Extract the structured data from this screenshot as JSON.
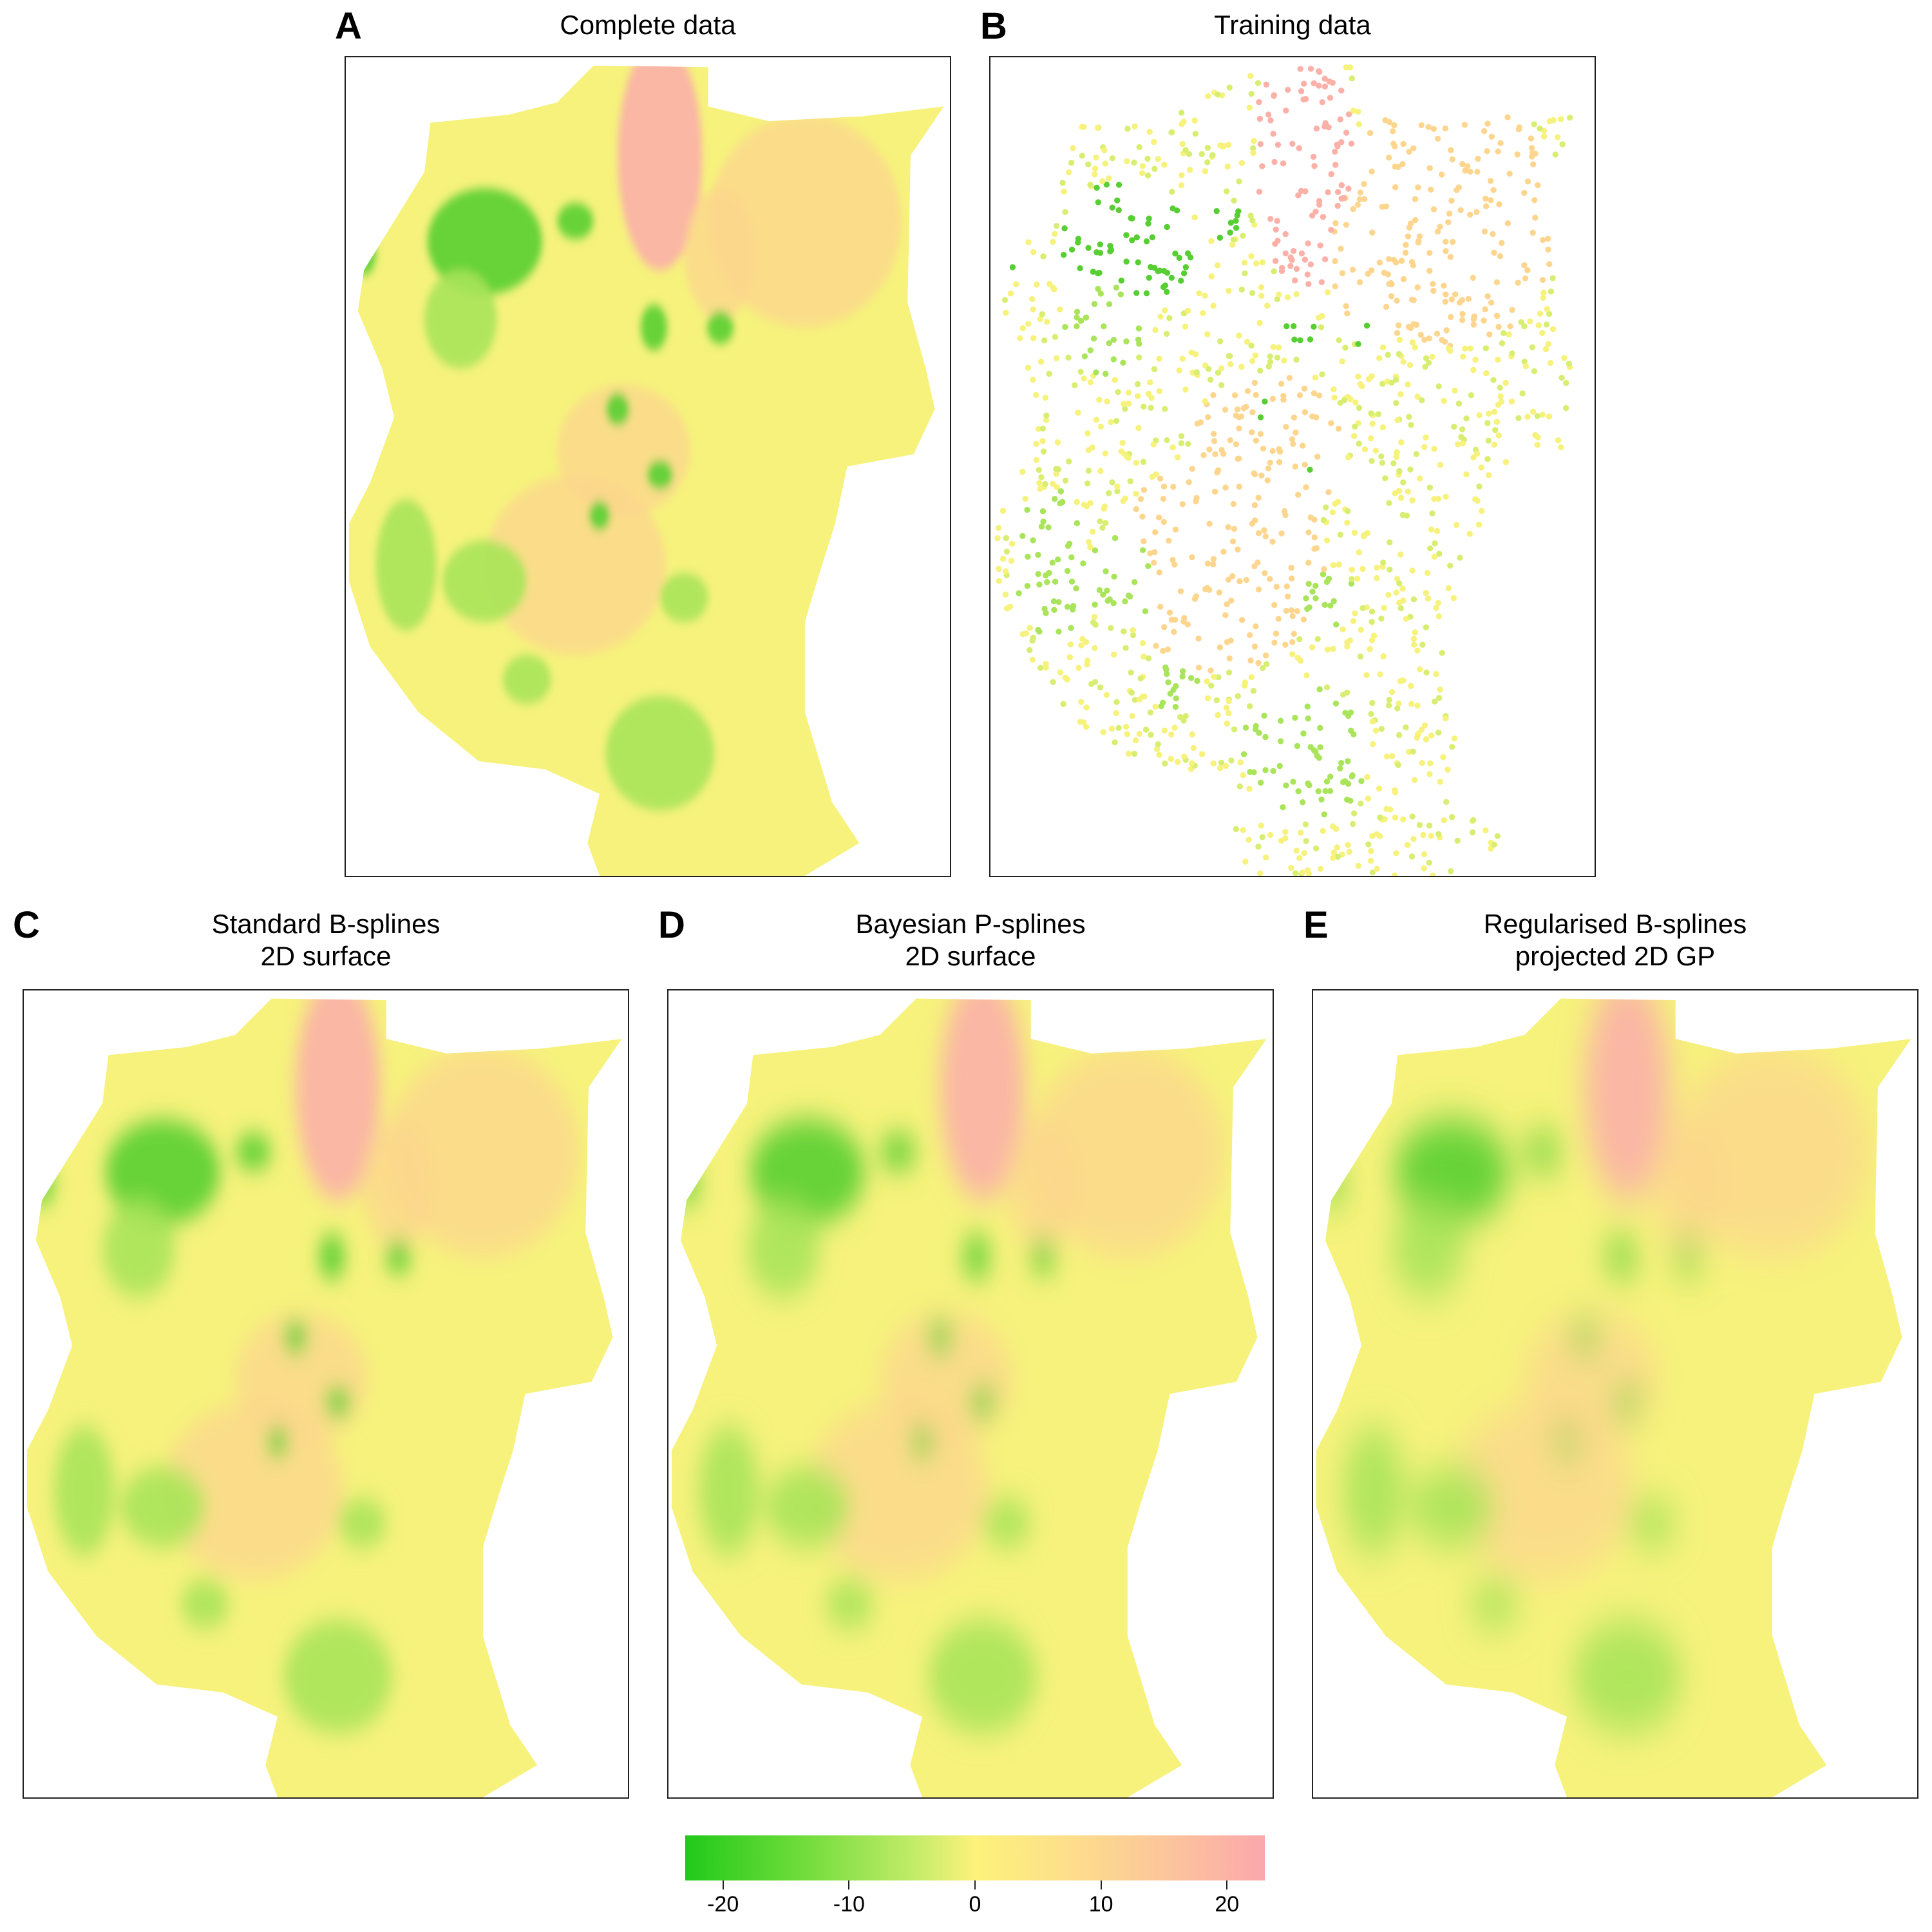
{
  "panels": [
    {
      "letter": "A",
      "title": "Complete data",
      "style": "raster"
    },
    {
      "letter": "B",
      "title": "Training data",
      "style": "points"
    },
    {
      "letter": "C",
      "title_line1": "Standard B-splines",
      "title_line2": "2D surface",
      "style": "smooth"
    },
    {
      "letter": "D",
      "title_line1": "Bayesian P-splines",
      "title_line2": "2D surface",
      "style": "smooth"
    },
    {
      "letter": "E",
      "title_line1": "Regularised B-splines",
      "title_line2": "projected 2D GP",
      "style": "smooth"
    }
  ],
  "colorbar": {
    "range": [
      -23,
      23
    ],
    "ticks": [
      "-20",
      "-10",
      "0",
      "10",
      "20"
    ],
    "tick_values": [
      -20,
      -10,
      0,
      10,
      20
    ],
    "colors": [
      "#21c91a",
      "#6fdc3a",
      "#c5ec6a",
      "#fdf27a",
      "#fde08a",
      "#fcc79a",
      "#fba8ac"
    ]
  },
  "palette": {
    "yellow": "#f6f27c",
    "yellow_green": "#d8ee72",
    "green": "#a9e45a",
    "dark_green": "#57cf32",
    "orange": "#fcd68e",
    "pink": "#fbb0a8",
    "border": "#222222"
  }
}
